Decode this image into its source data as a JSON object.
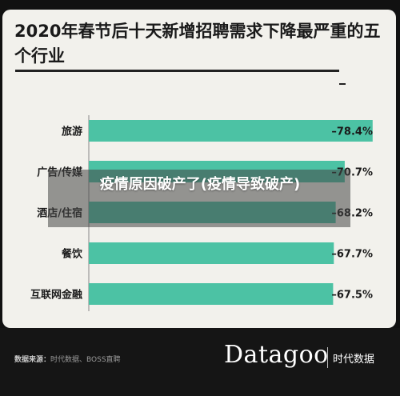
{
  "title": "2020年春节后十天新增招聘需求下降最严重的五个行业",
  "overlay_title": "疫情原因破产了(疫情导致破产)",
  "footer": {
    "source_label": "数据来源：",
    "source_text": "时代数据、BOSS直聘",
    "brand": "Datagoo",
    "brand_cn": "时代数据"
  },
  "colors": {
    "bar": "#4cc2a4",
    "background": "#f2f1ec",
    "footer": "#151515",
    "text": "#1a1a1a"
  },
  "chart_data": {
    "type": "bar",
    "orientation": "horizontal",
    "title": "2020年春节后十天新增招聘需求下降最严重的五个行业",
    "categories": [
      "旅游",
      "广告/传媒",
      "酒店/住宿",
      "餐饮",
      "互联网金融"
    ],
    "values": [
      -78.4,
      -70.7,
      -68.2,
      -67.7,
      -67.5
    ],
    "value_labels": [
      "–78.4%",
      "–70.7%",
      "–68.2%",
      "–67.7%",
      "–67.5%"
    ],
    "unit": "%",
    "xlim": [
      0,
      -80
    ],
    "grid": false,
    "legend": "none"
  }
}
